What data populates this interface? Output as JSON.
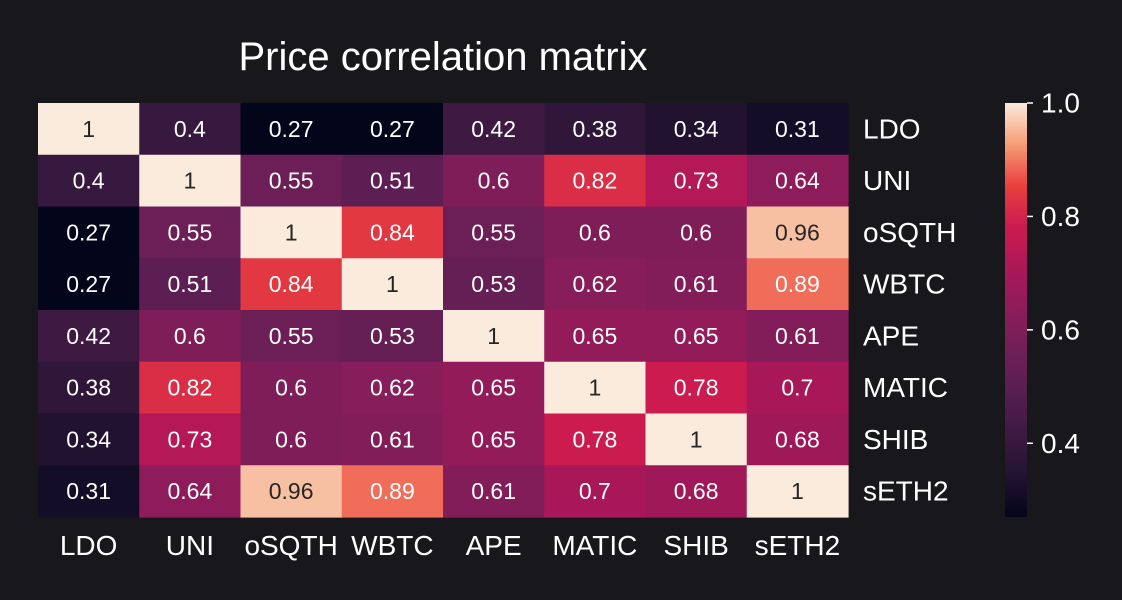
{
  "chart_data": {
    "type": "heatmap",
    "title": "Price correlation matrix",
    "x_labels": [
      "LDO",
      "UNI",
      "oSQTH",
      "WBTC",
      "APE",
      "MATIC",
      "SHIB",
      "sETH2"
    ],
    "y_labels": [
      "LDO",
      "UNI",
      "oSQTH",
      "WBTC",
      "APE",
      "MATIC",
      "SHIB",
      "sETH2"
    ],
    "values": [
      [
        1,
        0.4,
        0.27,
        0.27,
        0.42,
        0.38,
        0.34,
        0.31
      ],
      [
        0.4,
        1,
        0.55,
        0.51,
        0.6,
        0.82,
        0.73,
        0.64
      ],
      [
        0.27,
        0.55,
        1,
        0.84,
        0.55,
        0.6,
        0.6,
        0.96
      ],
      [
        0.27,
        0.51,
        0.84,
        1,
        0.53,
        0.62,
        0.61,
        0.89
      ],
      [
        0.42,
        0.6,
        0.55,
        0.53,
        1,
        0.65,
        0.65,
        0.61
      ],
      [
        0.38,
        0.82,
        0.6,
        0.62,
        0.65,
        1,
        0.78,
        0.7
      ],
      [
        0.34,
        0.73,
        0.6,
        0.61,
        0.65,
        0.78,
        1,
        0.68
      ],
      [
        0.31,
        0.64,
        0.96,
        0.89,
        0.61,
        0.7,
        0.68,
        1
      ]
    ],
    "colorbar": {
      "range": [
        0.27,
        1.0
      ],
      "ticks": [
        "1.0",
        "0.8",
        "0.6",
        "0.4"
      ],
      "colormap": "rocket"
    },
    "annotations": true,
    "y_axis_side": "right"
  },
  "colors": {
    "background": "#18171c",
    "text": "#ffffff",
    "dark_cell_text": "#262626"
  }
}
